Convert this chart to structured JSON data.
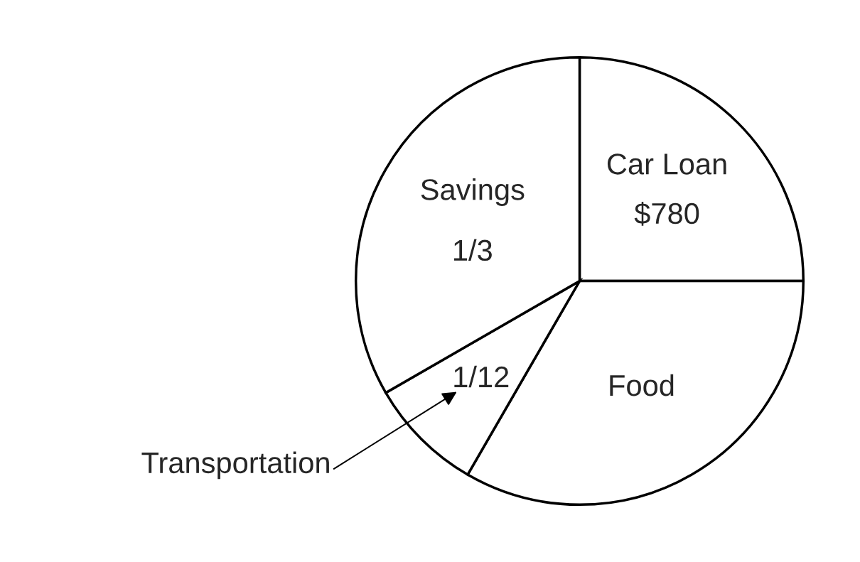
{
  "chart_data": {
    "type": "pie",
    "categories": [
      "Car Loan",
      "Food",
      "Transportation",
      "Savings"
    ],
    "values": [
      25,
      33.34,
      8.33,
      33.33
    ],
    "colors": [
      "#ffffff",
      "#ffffff",
      "#ffffff",
      "#ffffff"
    ],
    "annotations": [
      {
        "text": "$780",
        "x": "Car Loan"
      },
      {
        "text": "1/12",
        "x": "Transportation"
      },
      {
        "text": "1/3",
        "x": "Savings"
      }
    ],
    "legend": false
  }
}
